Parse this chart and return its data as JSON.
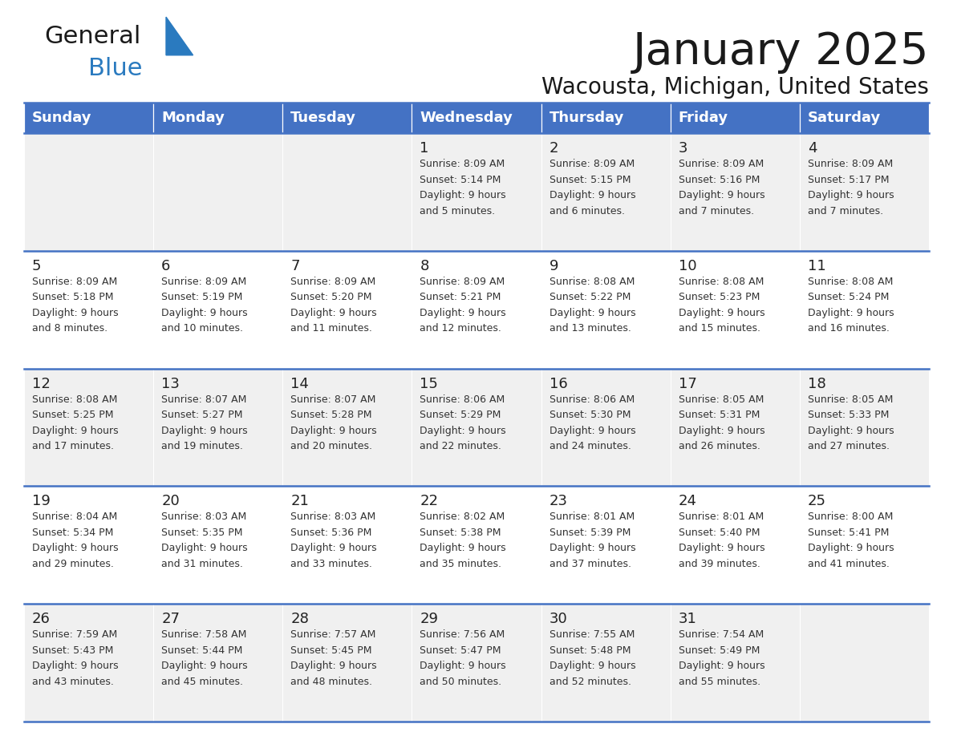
{
  "title": "January 2025",
  "subtitle": "Wacousta, Michigan, United States",
  "header_bg": "#4472C4",
  "header_text_color": "#ffffff",
  "cell_bg_odd": "#f0f0f0",
  "cell_bg_even": "#ffffff",
  "border_color": "#4472C4",
  "text_color": "#333333",
  "days_of_week": [
    "Sunday",
    "Monday",
    "Tuesday",
    "Wednesday",
    "Thursday",
    "Friday",
    "Saturday"
  ],
  "weeks": [
    [
      {
        "day": "",
        "info": ""
      },
      {
        "day": "",
        "info": ""
      },
      {
        "day": "",
        "info": ""
      },
      {
        "day": "1",
        "info": "Sunrise: 8:09 AM\nSunset: 5:14 PM\nDaylight: 9 hours\nand 5 minutes."
      },
      {
        "day": "2",
        "info": "Sunrise: 8:09 AM\nSunset: 5:15 PM\nDaylight: 9 hours\nand 6 minutes."
      },
      {
        "day": "3",
        "info": "Sunrise: 8:09 AM\nSunset: 5:16 PM\nDaylight: 9 hours\nand 7 minutes."
      },
      {
        "day": "4",
        "info": "Sunrise: 8:09 AM\nSunset: 5:17 PM\nDaylight: 9 hours\nand 7 minutes."
      }
    ],
    [
      {
        "day": "5",
        "info": "Sunrise: 8:09 AM\nSunset: 5:18 PM\nDaylight: 9 hours\nand 8 minutes."
      },
      {
        "day": "6",
        "info": "Sunrise: 8:09 AM\nSunset: 5:19 PM\nDaylight: 9 hours\nand 10 minutes."
      },
      {
        "day": "7",
        "info": "Sunrise: 8:09 AM\nSunset: 5:20 PM\nDaylight: 9 hours\nand 11 minutes."
      },
      {
        "day": "8",
        "info": "Sunrise: 8:09 AM\nSunset: 5:21 PM\nDaylight: 9 hours\nand 12 minutes."
      },
      {
        "day": "9",
        "info": "Sunrise: 8:08 AM\nSunset: 5:22 PM\nDaylight: 9 hours\nand 13 minutes."
      },
      {
        "day": "10",
        "info": "Sunrise: 8:08 AM\nSunset: 5:23 PM\nDaylight: 9 hours\nand 15 minutes."
      },
      {
        "day": "11",
        "info": "Sunrise: 8:08 AM\nSunset: 5:24 PM\nDaylight: 9 hours\nand 16 minutes."
      }
    ],
    [
      {
        "day": "12",
        "info": "Sunrise: 8:08 AM\nSunset: 5:25 PM\nDaylight: 9 hours\nand 17 minutes."
      },
      {
        "day": "13",
        "info": "Sunrise: 8:07 AM\nSunset: 5:27 PM\nDaylight: 9 hours\nand 19 minutes."
      },
      {
        "day": "14",
        "info": "Sunrise: 8:07 AM\nSunset: 5:28 PM\nDaylight: 9 hours\nand 20 minutes."
      },
      {
        "day": "15",
        "info": "Sunrise: 8:06 AM\nSunset: 5:29 PM\nDaylight: 9 hours\nand 22 minutes."
      },
      {
        "day": "16",
        "info": "Sunrise: 8:06 AM\nSunset: 5:30 PM\nDaylight: 9 hours\nand 24 minutes."
      },
      {
        "day": "17",
        "info": "Sunrise: 8:05 AM\nSunset: 5:31 PM\nDaylight: 9 hours\nand 26 minutes."
      },
      {
        "day": "18",
        "info": "Sunrise: 8:05 AM\nSunset: 5:33 PM\nDaylight: 9 hours\nand 27 minutes."
      }
    ],
    [
      {
        "day": "19",
        "info": "Sunrise: 8:04 AM\nSunset: 5:34 PM\nDaylight: 9 hours\nand 29 minutes."
      },
      {
        "day": "20",
        "info": "Sunrise: 8:03 AM\nSunset: 5:35 PM\nDaylight: 9 hours\nand 31 minutes."
      },
      {
        "day": "21",
        "info": "Sunrise: 8:03 AM\nSunset: 5:36 PM\nDaylight: 9 hours\nand 33 minutes."
      },
      {
        "day": "22",
        "info": "Sunrise: 8:02 AM\nSunset: 5:38 PM\nDaylight: 9 hours\nand 35 minutes."
      },
      {
        "day": "23",
        "info": "Sunrise: 8:01 AM\nSunset: 5:39 PM\nDaylight: 9 hours\nand 37 minutes."
      },
      {
        "day": "24",
        "info": "Sunrise: 8:01 AM\nSunset: 5:40 PM\nDaylight: 9 hours\nand 39 minutes."
      },
      {
        "day": "25",
        "info": "Sunrise: 8:00 AM\nSunset: 5:41 PM\nDaylight: 9 hours\nand 41 minutes."
      }
    ],
    [
      {
        "day": "26",
        "info": "Sunrise: 7:59 AM\nSunset: 5:43 PM\nDaylight: 9 hours\nand 43 minutes."
      },
      {
        "day": "27",
        "info": "Sunrise: 7:58 AM\nSunset: 5:44 PM\nDaylight: 9 hours\nand 45 minutes."
      },
      {
        "day": "28",
        "info": "Sunrise: 7:57 AM\nSunset: 5:45 PM\nDaylight: 9 hours\nand 48 minutes."
      },
      {
        "day": "29",
        "info": "Sunrise: 7:56 AM\nSunset: 5:47 PM\nDaylight: 9 hours\nand 50 minutes."
      },
      {
        "day": "30",
        "info": "Sunrise: 7:55 AM\nSunset: 5:48 PM\nDaylight: 9 hours\nand 52 minutes."
      },
      {
        "day": "31",
        "info": "Sunrise: 7:54 AM\nSunset: 5:49 PM\nDaylight: 9 hours\nand 55 minutes."
      },
      {
        "day": "",
        "info": ""
      }
    ]
  ],
  "logo_general_color": "#1a1a1a",
  "logo_blue_color": "#2a7abf",
  "logo_triangle_color": "#2a7abf",
  "title_color": "#1a1a1a",
  "subtitle_color": "#1a1a1a",
  "title_fontsize": 40,
  "subtitle_fontsize": 20,
  "header_fontsize": 13,
  "day_num_fontsize": 13,
  "info_fontsize": 9,
  "fig_width": 11.88,
  "fig_height": 9.18,
  "dpi": 100
}
